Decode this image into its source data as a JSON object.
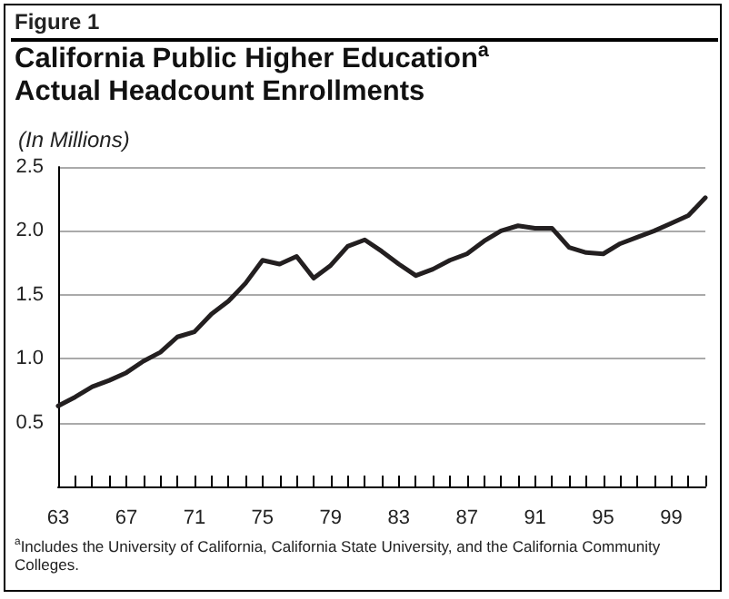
{
  "chart_data": {
    "type": "line",
    "title": "California Public Higher Education$^{a}$ Actual Headcount Enrollments",
    "ylabel": "(In Millions)",
    "annotations": [
      "Figure 1",
      "$^{a}$Includes the University of California, California State University, and the California Community Colleges."
    ],
    "x": [
      63,
      64,
      65,
      66,
      67,
      68,
      69,
      70,
      71,
      72,
      73,
      74,
      75,
      76,
      77,
      78,
      79,
      80,
      81,
      82,
      83,
      84,
      85,
      86,
      87,
      88,
      89,
      90,
      91,
      92,
      93,
      94,
      95,
      96,
      97,
      98,
      99,
      100,
      101
    ],
    "series": [
      {
        "color": "#231f20",
        "values": [
          0.63,
          0.7,
          0.78,
          0.83,
          0.89,
          0.98,
          1.05,
          1.17,
          1.21,
          1.35,
          1.45,
          1.59,
          1.77,
          1.74,
          1.8,
          1.63,
          1.73,
          1.88,
          1.93,
          1.84,
          1.74,
          1.65,
          1.7,
          1.77,
          1.82,
          1.92,
          2.0,
          2.04,
          2.02,
          2.02,
          1.87,
          1.83,
          1.82,
          1.9,
          1.95,
          2.0,
          2.06,
          2.12,
          2.26
        ]
      }
    ],
    "xlim": [
      63,
      101
    ],
    "xticks": [
      63,
      {
        "value": 64,
        "label": null
      },
      {
        "value": 65,
        "label": null
      },
      {
        "value": 66,
        "label": null
      },
      67,
      {
        "value": 68,
        "label": null
      },
      {
        "value": 69,
        "label": null
      },
      {
        "value": 70,
        "label": null
      },
      71,
      {
        "value": 72,
        "label": null
      },
      {
        "value": 73,
        "label": null
      },
      {
        "value": 74,
        "label": null
      },
      75,
      {
        "value": 76,
        "label": null
      },
      {
        "value": 77,
        "label": null
      },
      {
        "value": 78,
        "label": null
      },
      79,
      {
        "value": 80,
        "label": null
      },
      {
        "value": 81,
        "label": null
      },
      {
        "value": 82,
        "label": null
      },
      83,
      {
        "value": 84,
        "label": null
      },
      {
        "value": 85,
        "label": null
      },
      {
        "value": 86,
        "label": null
      },
      87,
      {
        "value": 88,
        "label": null
      },
      {
        "value": 89,
        "label": null
      },
      {
        "value": 90,
        "label": null
      },
      91,
      {
        "value": 92,
        "label": null
      },
      {
        "value": 93,
        "label": null
      },
      {
        "value": 94,
        "label": null
      },
      95,
      {
        "value": 96,
        "label": null
      },
      {
        "value": 97,
        "label": null
      },
      {
        "value": 98,
        "label": null
      },
      99,
      {
        "value": 100,
        "label": null
      },
      {
        "value": 101,
        "label": null
      }
    ],
    "ylim": [
      0,
      2.5
    ],
    "yticks": [
      {
        "value": 0,
        "label": null
      },
      {
        "value": 0.5,
        "label": "0.5"
      },
      {
        "value": 1,
        "label": "1.0"
      },
      {
        "value": 1.5,
        "label": "1.5"
      },
      {
        "value": 2,
        "label": "2.0"
      },
      {
        "value": 2.5,
        "label": "2.5"
      }
    ],
    "grid": "y",
    "marker": "none",
    "line_style": "solid"
  }
}
